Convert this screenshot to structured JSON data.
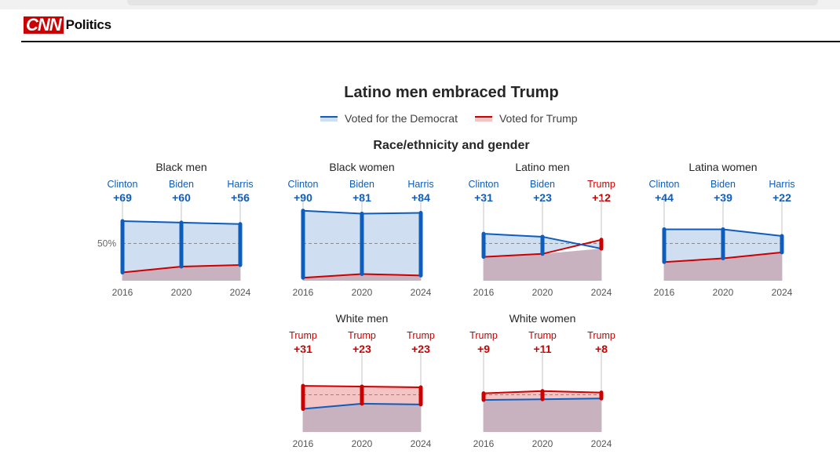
{
  "site": {
    "logo_text": "CNN",
    "section": "Politics"
  },
  "title": "Latino men embraced Trump",
  "legend": {
    "dem_label": "Voted for the Democrat",
    "rep_label": "Voted for Trump"
  },
  "subtitle": "Race/ethnicity and gender",
  "colors": {
    "dem_line": "#0e5dbd",
    "dem_fill": "#cfdff1",
    "rep_line": "#cc0000",
    "rep_fill": "#f4c3c3",
    "overlap_fill": "#c9b2c0"
  },
  "chart_data": {
    "type": "line",
    "x": [
      "2016",
      "2020",
      "2024"
    ],
    "reference_label": "50%",
    "panels": [
      {
        "name": "Black men",
        "dem": [
          80,
          78,
          76
        ],
        "rep": [
          11,
          19,
          21
        ],
        "labels": [
          {
            "candidate": "Clinton",
            "margin": "+69",
            "party": "dem"
          },
          {
            "candidate": "Biden",
            "margin": "+60",
            "party": "dem"
          },
          {
            "candidate": "Harris",
            "margin": "+56",
            "party": "dem"
          }
        ]
      },
      {
        "name": "Black women",
        "dem": [
          94,
          90,
          91
        ],
        "rep": [
          4,
          9,
          7
        ],
        "labels": [
          {
            "candidate": "Clinton",
            "margin": "+90",
            "party": "dem"
          },
          {
            "candidate": "Biden",
            "margin": "+81",
            "party": "dem"
          },
          {
            "candidate": "Harris",
            "margin": "+84",
            "party": "dem"
          }
        ]
      },
      {
        "name": "Latino men",
        "dem": [
          63,
          59,
          43
        ],
        "rep": [
          32,
          36,
          55
        ],
        "labels": [
          {
            "candidate": "Clinton",
            "margin": "+31",
            "party": "dem"
          },
          {
            "candidate": "Biden",
            "margin": "+23",
            "party": "dem"
          },
          {
            "candidate": "Trump",
            "margin": "+12",
            "party": "rep"
          }
        ]
      },
      {
        "name": "Latina women",
        "dem": [
          69,
          69,
          60
        ],
        "rep": [
          25,
          30,
          38
        ],
        "labels": [
          {
            "candidate": "Clinton",
            "margin": "+44",
            "party": "dem"
          },
          {
            "candidate": "Biden",
            "margin": "+39",
            "party": "dem"
          },
          {
            "candidate": "Harris",
            "margin": "+22",
            "party": "dem"
          }
        ]
      },
      {
        "name": "White men",
        "dem": [
          31,
          38,
          37
        ],
        "rep": [
          62,
          61,
          60
        ],
        "labels": [
          {
            "candidate": "Trump",
            "margin": "+31",
            "party": "rep"
          },
          {
            "candidate": "Trump",
            "margin": "+23",
            "party": "rep"
          },
          {
            "candidate": "Trump",
            "margin": "+23",
            "party": "rep"
          }
        ]
      },
      {
        "name": "White women",
        "dem": [
          43,
          44,
          45
        ],
        "rep": [
          52,
          55,
          53
        ],
        "labels": [
          {
            "candidate": "Trump",
            "margin": "+9",
            "party": "rep"
          },
          {
            "candidate": "Trump",
            "margin": "+11",
            "party": "rep"
          },
          {
            "candidate": "Trump",
            "margin": "+8",
            "party": "rep"
          }
        ]
      }
    ]
  }
}
